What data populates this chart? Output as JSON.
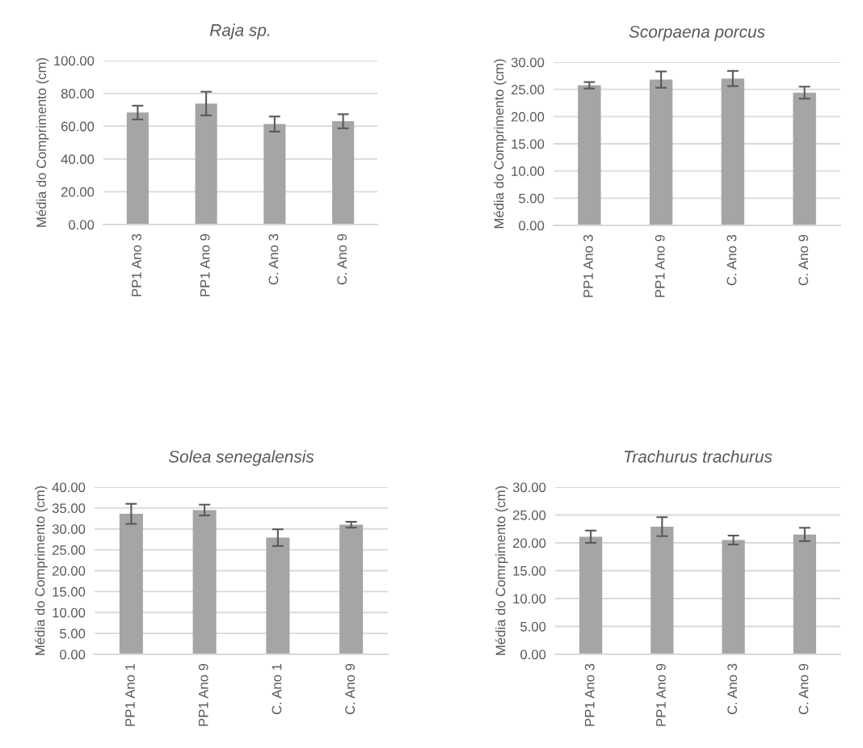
{
  "chart_data": [
    {
      "type": "bar",
      "title": "Raja sp.",
      "ylabel": "Média do Comprimento (cm)",
      "categories": [
        "PP1 Ano 3",
        "PP1 Ano 9",
        "C. Ano 3",
        "C. Ano 9"
      ],
      "values": [
        68.3,
        73.8,
        61.3,
        63.0
      ],
      "errors": [
        4.2,
        7.2,
        4.6,
        4.3
      ],
      "color": "#a5a5a5",
      "ylim": [
        0,
        100
      ],
      "yticks": [
        {
          "value": 0,
          "label": "0.00"
        },
        {
          "value": 20,
          "label": "20.00"
        },
        {
          "value": 40,
          "label": "40.00"
        },
        {
          "value": 60,
          "label": "60.00"
        },
        {
          "value": 80,
          "label": "80.00"
        },
        {
          "value": 100,
          "label": "100.00"
        }
      ],
      "grid": "y"
    },
    {
      "type": "bar",
      "title": "Scorpaena porcus",
      "ylabel": "Média do Comprimento (cm)",
      "categories": [
        "PP1 Ano 3",
        "PP1 Ano 9",
        "C. Ano 3",
        "C. Ano 9"
      ],
      "values": [
        25.75,
        26.8,
        27.0,
        24.4
      ],
      "errors": [
        0.6,
        1.5,
        1.4,
        1.1
      ],
      "color": "#a5a5a5",
      "ylim": [
        0,
        30
      ],
      "yticks": [
        {
          "value": 0,
          "label": "0.00"
        },
        {
          "value": 5,
          "label": "5.00"
        },
        {
          "value": 10,
          "label": "10.00"
        },
        {
          "value": 15,
          "label": "15.00"
        },
        {
          "value": 20,
          "label": "20.00"
        },
        {
          "value": 25,
          "label": "25.00"
        },
        {
          "value": 30,
          "label": "30.00"
        }
      ],
      "grid": "y"
    },
    {
      "type": "bar",
      "title": "Solea senegalensis",
      "ylabel": "Média do Comprimento (cm)",
      "categories": [
        "PP1 Ano 1",
        "PP1 Ano 9",
        "C. Ano 1",
        "C. Ano 9"
      ],
      "values": [
        33.6,
        34.5,
        27.9,
        31.0
      ],
      "errors": [
        2.4,
        1.3,
        2.0,
        0.7
      ],
      "color": "#a5a5a5",
      "ylim": [
        0,
        40
      ],
      "yticks": [
        {
          "value": 0,
          "label": "0.00"
        },
        {
          "value": 5,
          "label": "5.00"
        },
        {
          "value": 10,
          "label": "10.00"
        },
        {
          "value": 15,
          "label": "15.00"
        },
        {
          "value": 20,
          "label": "20.00"
        },
        {
          "value": 25,
          "label": "25.00"
        },
        {
          "value": 30,
          "label": "30.00"
        },
        {
          "value": 35,
          "label": "35.00"
        },
        {
          "value": 40,
          "label": "40.00"
        }
      ],
      "grid": "y"
    },
    {
      "type": "bar",
      "title": "Trachurus trachurus",
      "ylabel": "Média do Comrpimento (cm)",
      "categories": [
        "PP1 Ano 3",
        "PP1 Ano 9",
        "C. Ano 3",
        "C. Ano 9"
      ],
      "values": [
        21.1,
        22.9,
        20.5,
        21.5
      ],
      "errors": [
        1.1,
        1.7,
        0.8,
        1.2
      ],
      "color": "#a5a5a5",
      "ylim": [
        0,
        30
      ],
      "yticks": [
        {
          "value": 0,
          "label": "0.00"
        },
        {
          "value": 5,
          "label": "5.00"
        },
        {
          "value": 10,
          "label": "10.00"
        },
        {
          "value": 15,
          "label": "15.00"
        },
        {
          "value": 20,
          "label": "20.00"
        },
        {
          "value": 25,
          "label": "25.00"
        },
        {
          "value": 30,
          "label": "30.00"
        }
      ],
      "grid": "y"
    }
  ]
}
